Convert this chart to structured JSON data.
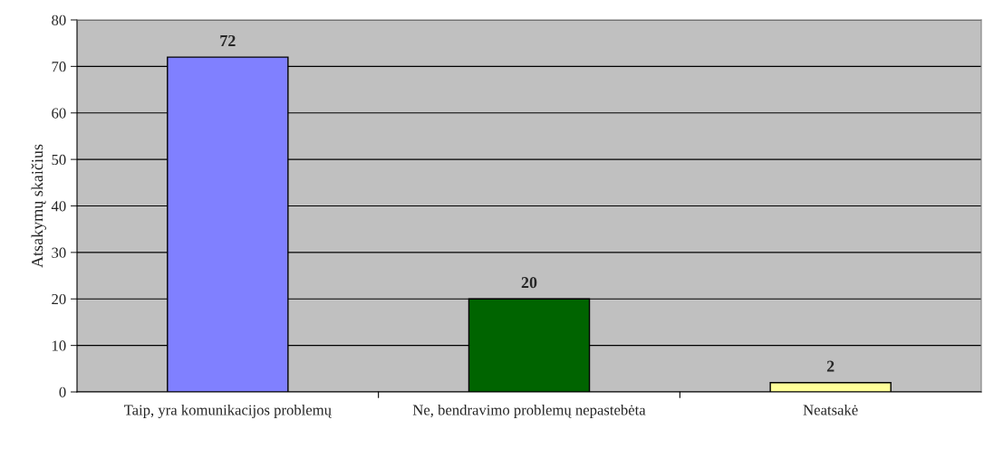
{
  "chart_data": {
    "type": "bar",
    "ylabel": "Atsakymų skaičius",
    "categories": [
      "Taip, yra komunikacijos problemų",
      "Ne, bendravimo problemų nepastebėta",
      "Neatsakė"
    ],
    "values": [
      72,
      20,
      2
    ],
    "colors": [
      "#8080ff",
      "#006400",
      "#ffff99"
    ],
    "ylim": [
      0,
      80
    ],
    "yticks": [
      0,
      10,
      20,
      30,
      40,
      50,
      60,
      70,
      80
    ],
    "grid": "y",
    "data_labels": true
  }
}
